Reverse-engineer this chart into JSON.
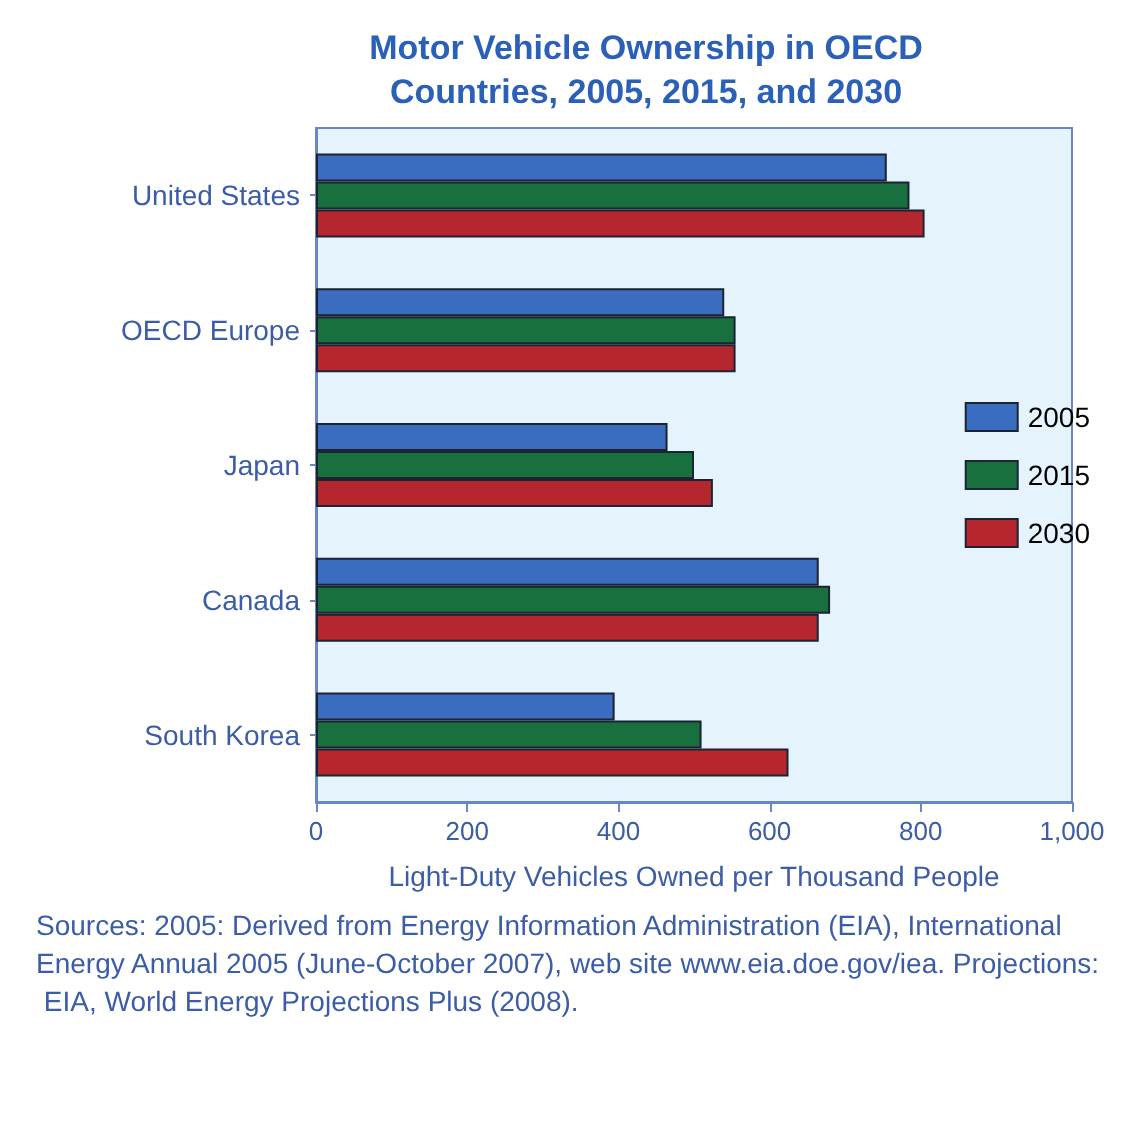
{
  "chart_data": {
    "type": "bar",
    "orientation": "horizontal",
    "title": "Motor Vehicle Ownership in OECD\nCountries, 2005, 2015, and 2030",
    "categories": [
      "United States",
      "OECD Europe",
      "Japan",
      "Canada",
      "South Korea"
    ],
    "series": [
      {
        "name": "2005",
        "color": "#3a6cc0",
        "values": [
          755,
          540,
          465,
          665,
          395
        ]
      },
      {
        "name": "2015",
        "color": "#17703e",
        "values": [
          785,
          555,
          500,
          680,
          510
        ]
      },
      {
        "name": "2030",
        "color": "#b5262e",
        "values": [
          805,
          555,
          525,
          665,
          625
        ]
      }
    ],
    "xlim": [
      0,
      1000
    ],
    "xticks": [
      0,
      200,
      400,
      600,
      800,
      {
        "value": 1000,
        "label": "1,000"
      }
    ],
    "xlabel": "Light-Duty Vehicles Owned per Thousand People",
    "legend": "right",
    "grid": false,
    "annotations": [
      "Sources: 2005: Derived from Energy Information Administration (EIA), International Energy Annual 2005 (June-October 2007), web site www.eia.doe.gov/iea. Projections: EIA, World Energy Projections Plus (2008)."
    ]
  }
}
